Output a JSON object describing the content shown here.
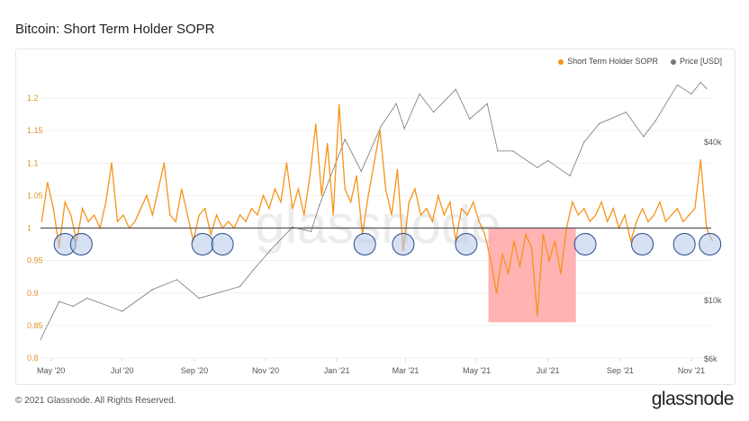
{
  "title": "Bitcoin: Short Term Holder SOPR",
  "footer": "© 2021 Glassnode. All Rights Reserved.",
  "logo": "glassnode",
  "watermark": "glassnode",
  "chart_data": {
    "type": "line",
    "title": "Bitcoin: Short Term Holder SOPR",
    "legend": [
      {
        "label": "Short Term Holder SOPR",
        "color": "#f7931a"
      },
      {
        "label": "Price [USD]",
        "color": "#777777"
      }
    ],
    "legend_position": "top-right",
    "x_range": [
      "2020-04-22",
      "2021-11-18"
    ],
    "x_ticks": [
      {
        "date": "2020-05-01",
        "label": "May '20"
      },
      {
        "date": "2020-07-01",
        "label": "Jul '20"
      },
      {
        "date": "2020-09-01",
        "label": "Sep '20"
      },
      {
        "date": "2020-11-01",
        "label": "Nov '20"
      },
      {
        "date": "2021-01-01",
        "label": "Jan '21"
      },
      {
        "date": "2021-03-01",
        "label": "Mar '21"
      },
      {
        "date": "2021-05-01",
        "label": "May '21"
      },
      {
        "date": "2021-07-01",
        "label": "Jul '21"
      },
      {
        "date": "2021-09-01",
        "label": "Sep '21"
      },
      {
        "date": "2021-11-01",
        "label": "Nov '21"
      }
    ],
    "y_left": {
      "range": [
        0.8,
        1.2
      ],
      "ticks": [
        "0.8",
        "0.85",
        "0.9",
        "0.95",
        "1",
        "1.05",
        "1.1",
        "1.15",
        "1.2"
      ],
      "color": "#e3912b"
    },
    "y_right": {
      "scale": "log",
      "range": [
        6000,
        100000
      ],
      "ticks": [
        {
          "value": 6000,
          "label": "$6k"
        },
        {
          "value": 10000,
          "label": "$10k"
        },
        {
          "value": 40000,
          "label": "$40k"
        }
      ]
    },
    "reference_line": 1,
    "sopr": {
      "start": "2020-04-23",
      "step_days": 5,
      "values": [
        1.01,
        1.07,
        1.03,
        0.97,
        1.04,
        1.02,
        0.98,
        1.03,
        1.01,
        1.02,
        1.0,
        1.04,
        1.1,
        1.01,
        1.02,
        1.0,
        1.01,
        1.03,
        1.05,
        1.02,
        1.06,
        1.1,
        1.02,
        1.01,
        1.06,
        1.02,
        0.98,
        1.02,
        1.03,
        0.99,
        1.02,
        1.0,
        1.01,
        1.0,
        1.02,
        1.01,
        1.03,
        1.02,
        1.05,
        1.03,
        1.06,
        1.04,
        1.1,
        1.03,
        1.06,
        1.02,
        1.08,
        1.16,
        1.05,
        1.13,
        1.02,
        1.19,
        1.06,
        1.04,
        1.08,
        0.99,
        1.05,
        1.1,
        1.15,
        1.06,
        1.02,
        1.09,
        0.965,
        1.04,
        1.06,
        1.02,
        1.03,
        1.01,
        1.05,
        1.02,
        1.04,
        0.98,
        1.03,
        1.02,
        1.04,
        1.01,
        0.99,
        0.95,
        0.9,
        0.96,
        0.93,
        0.98,
        0.94,
        0.99,
        0.97,
        0.865,
        0.99,
        0.95,
        0.98,
        0.93,
        1.0,
        1.04,
        1.02,
        1.03,
        1.01,
        1.02,
        1.04,
        1.01,
        1.03,
        1.0,
        1.02,
        0.98,
        1.01,
        1.03,
        1.01,
        1.02,
        1.04,
        1.01,
        1.02,
        1.03,
        1.01,
        1.02,
        1.03,
        1.105,
        1.0,
        0.98
      ]
    },
    "price": [
      [
        "2020-04-22",
        7100
      ],
      [
        "2020-05-08",
        9900
      ],
      [
        "2020-05-20",
        9500
      ],
      [
        "2020-06-01",
        10200
      ],
      [
        "2020-07-01",
        9100
      ],
      [
        "2020-07-27",
        11000
      ],
      [
        "2020-08-17",
        12000
      ],
      [
        "2020-09-05",
        10200
      ],
      [
        "2020-10-10",
        11300
      ],
      [
        "2020-10-21",
        13000
      ],
      [
        "2020-11-05",
        15500
      ],
      [
        "2020-11-24",
        19000
      ],
      [
        "2020-12-10",
        18300
      ],
      [
        "2020-12-17",
        23000
      ],
      [
        "2021-01-08",
        41000
      ],
      [
        "2021-01-22",
        31000
      ],
      [
        "2021-02-08",
        46000
      ],
      [
        "2021-02-21",
        56000
      ],
      [
        "2021-02-28",
        45000
      ],
      [
        "2021-03-13",
        61000
      ],
      [
        "2021-03-25",
        52000
      ],
      [
        "2021-04-13",
        63500
      ],
      [
        "2021-04-25",
        49000
      ],
      [
        "2021-05-10",
        56000
      ],
      [
        "2021-05-19",
        37000
      ],
      [
        "2021-06-01",
        37000
      ],
      [
        "2021-06-22",
        32000
      ],
      [
        "2021-07-01",
        34000
      ],
      [
        "2021-07-20",
        29800
      ],
      [
        "2021-08-01",
        40000
      ],
      [
        "2021-08-14",
        47000
      ],
      [
        "2021-09-06",
        52000
      ],
      [
        "2021-09-21",
        42000
      ],
      [
        "2021-10-01",
        48000
      ],
      [
        "2021-10-20",
        66000
      ],
      [
        "2021-11-01",
        61000
      ],
      [
        "2021-11-09",
        67500
      ],
      [
        "2021-11-14",
        64000
      ]
    ],
    "annotations": {
      "circled_dips": [
        "2020-05-13",
        "2020-05-27",
        "2020-09-08",
        "2020-09-25",
        "2021-01-25",
        "2021-02-27",
        "2021-04-22",
        "2021-08-02",
        "2021-09-20",
        "2021-10-26",
        "2021-11-17"
      ],
      "highlight_region": {
        "from": "2021-05-11",
        "to": "2021-07-25",
        "sopr_from": 0.855,
        "sopr_to": 1.0,
        "color": "#ff9a9a"
      }
    }
  }
}
